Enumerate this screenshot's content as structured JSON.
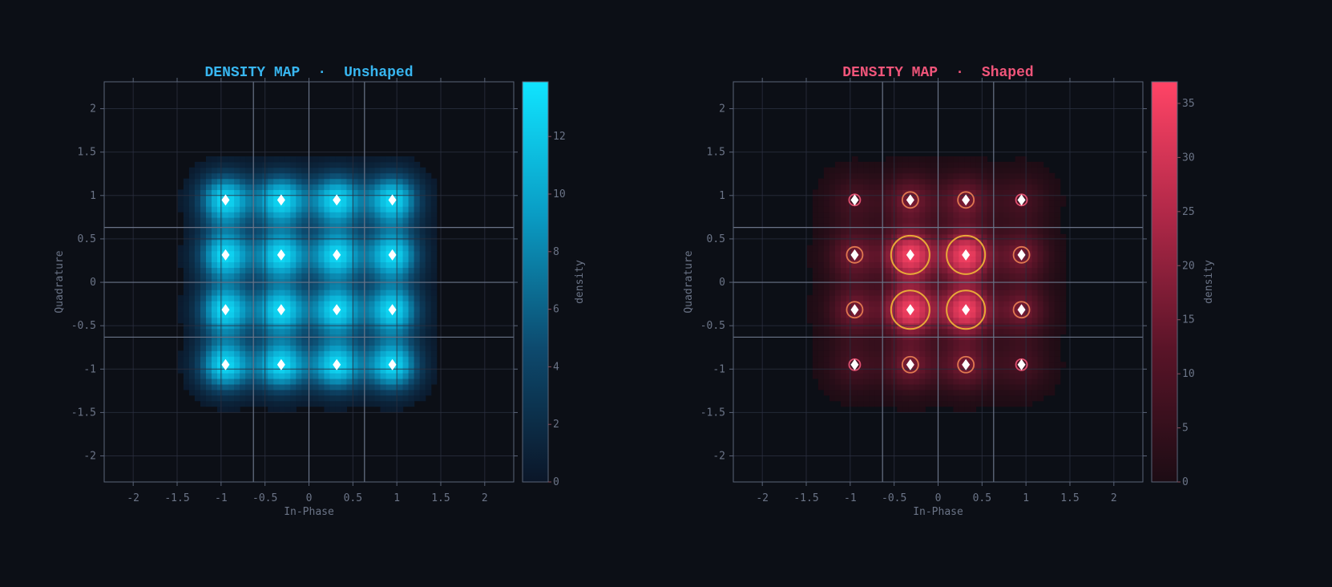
{
  "chart_data": [
    {
      "type": "heatmap",
      "title_left": "DENSITY MAP",
      "title_sep": "·",
      "title_right": "Unshaped",
      "title_color": "#38b6f0",
      "xlabel": "In-Phase",
      "ylabel": "Quadrature",
      "colorbar_label": "density",
      "xlim": [
        -2.33,
        2.33
      ],
      "ylim": [
        -2.3,
        2.31
      ],
      "xticks": [
        "-2",
        "-1.5",
        "-1",
        "-0.5",
        "0",
        "0.5",
        "1",
        "1.5",
        "2"
      ],
      "yticks": [
        "-2",
        "-1.5",
        "-1",
        "-0.5",
        "0",
        "0.5",
        "1",
        "1.5",
        "2"
      ],
      "decision_thresholds": [
        -0.632,
        0,
        0.632
      ],
      "colorbar_range": [
        0,
        13.9
      ],
      "colorbar_ticks": [
        "0",
        "2",
        "4",
        "6",
        "8",
        "10",
        "12"
      ],
      "colors": [
        "#0b1628",
        "#0d4a6e",
        "#0a9cc4",
        "#10e4ff"
      ],
      "symbols": [
        -0.949,
        -0.316,
        0.316,
        0.949
      ],
      "peak_density": [
        [
          13,
          13,
          13,
          13
        ],
        [
          13,
          13,
          13,
          13
        ],
        [
          13,
          13,
          13,
          13
        ],
        [
          13,
          13,
          13,
          13
        ]
      ],
      "spread": 0.2,
      "rings": false
    },
    {
      "type": "heatmap",
      "title_left": "DENSITY MAP",
      "title_sep": "·",
      "title_right": "Shaped",
      "title_color": "#f0557a",
      "xlabel": "In-Phase",
      "ylabel": "Quadrature",
      "colorbar_label": "density",
      "xlim": [
        -2.33,
        2.33
      ],
      "ylim": [
        -2.3,
        2.31
      ],
      "xticks": [
        "-2",
        "-1.5",
        "-1",
        "-0.5",
        "0",
        "0.5",
        "1",
        "1.5",
        "2"
      ],
      "yticks": [
        "-2",
        "-1.5",
        "-1",
        "-0.5",
        "0",
        "0.5",
        "1",
        "1.5",
        "2"
      ],
      "decision_thresholds": [
        -0.632,
        0,
        0.632
      ],
      "colorbar_range": [
        0,
        37
      ],
      "colorbar_ticks": [
        "0",
        "5",
        "10",
        "15",
        "20",
        "25",
        "30",
        "35"
      ],
      "colors": [
        "#1c0c14",
        "#5a1428",
        "#b02848",
        "#ff4466"
      ],
      "symbols": [
        -0.949,
        -0.316,
        0.316,
        0.949
      ],
      "peak_density": [
        [
          8,
          16,
          16,
          8
        ],
        [
          16,
          35,
          35,
          16
        ],
        [
          16,
          35,
          35,
          16
        ],
        [
          8,
          16,
          16,
          8
        ]
      ],
      "spread": 0.2,
      "rings": true,
      "ring_colors": {
        "inner": "#e8a838",
        "edge": "#e07850",
        "corner": "#e05070"
      }
    }
  ]
}
